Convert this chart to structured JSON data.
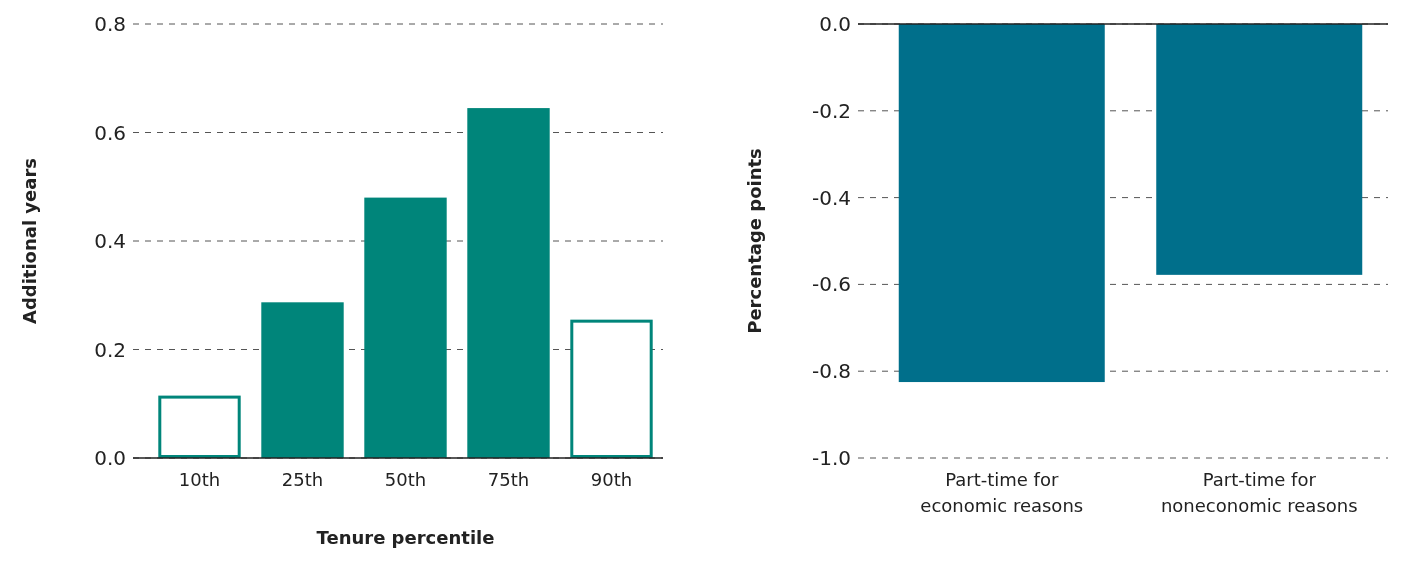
{
  "chart_data": [
    {
      "type": "bar",
      "xlabel": "Tenure percentile",
      "ylabel": "Additional years",
      "categories": [
        "10th",
        "25th",
        "50th",
        "75th",
        "90th"
      ],
      "values": [
        0.115,
        0.287,
        0.48,
        0.645,
        0.255
      ],
      "color": "#00857a",
      "colors": [
        "#ffffff",
        "#00857a",
        "#00857a",
        "#00857a",
        "#ffffff"
      ],
      "ylim": [
        0,
        0.8
      ],
      "yticks": [
        {
          "value": 0,
          "label": "0.0"
        },
        {
          "value": 0.2,
          "label": "0.2"
        },
        {
          "value": 0.4,
          "label": "0.4"
        },
        {
          "value": 0.6,
          "label": "0.6"
        },
        {
          "value": 0.8,
          "label": "0.8"
        }
      ],
      "grid": "y"
    },
    {
      "type": "bar",
      "ylabel": "Percentage points",
      "categories": [
        "Part-time for economic reasons",
        "Part-time for noneconomic reasons"
      ],
      "values": [
        -0.825,
        -0.578
      ],
      "color": "#006f8b",
      "ylim": [
        -1,
        0
      ],
      "yticks": [
        {
          "value": -1,
          "label": "-1.0"
        },
        {
          "value": -0.8,
          "label": "-0.8"
        },
        {
          "value": -0.6,
          "label": "-0.6"
        },
        {
          "value": -0.4,
          "label": "-0.4"
        },
        {
          "value": -0.2,
          "label": "-0.2"
        },
        {
          "value": 0,
          "label": "0.0"
        }
      ],
      "grid": "y"
    }
  ]
}
